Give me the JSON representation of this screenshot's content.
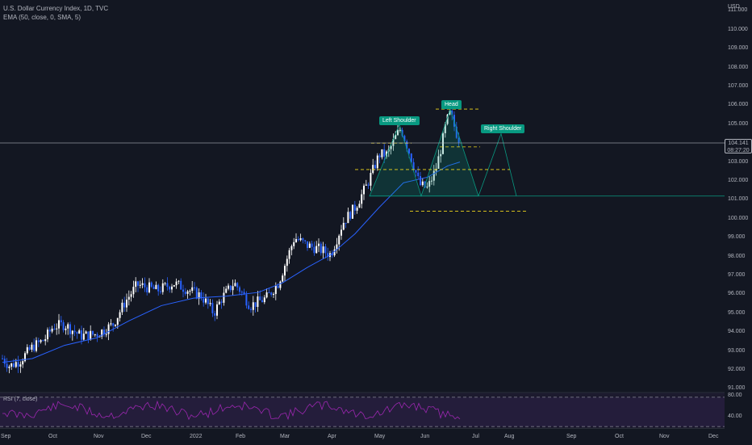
{
  "legend": {
    "symbol_line": "U.S. Dollar Currency Index, 1D, TVC",
    "indicator_line": "EMA (50, close, 0, SMA, 5)"
  },
  "currency": "USD",
  "price_ticks": [
    "111.000",
    "110.000",
    "109.000",
    "108.000",
    "107.000",
    "106.000",
    "105.000",
    "103.000",
    "102.000",
    "101.000",
    "100.000",
    "99.000",
    "98.000",
    "97.000",
    "96.000",
    "95.000",
    "94.000",
    "93.000",
    "92.000",
    "91.000"
  ],
  "current_price": {
    "value": "104.141",
    "countdown": "08:27:20"
  },
  "time_ticks": [
    "Sep",
    "Oct",
    "Nov",
    "Dec",
    "2022",
    "Feb",
    "Mar",
    "Apr",
    "May",
    "Jun",
    "Jul",
    "Aug",
    "Sep",
    "Oct",
    "Nov",
    "Dec"
  ],
  "rsi": {
    "label": "RSI (7, close)",
    "upper": "80.00",
    "lower": "40.00"
  },
  "pattern": {
    "left_shoulder": "Left Shoulder",
    "head": "Head",
    "right_shoulder": "Right Shoulder"
  },
  "colors": {
    "background": "#131722",
    "candle_up": "#ffffff",
    "candle_down": "#2962ff",
    "ema": "#2962ff",
    "pattern_fill": "#089981",
    "dashed_levels": "#f2d81c",
    "rsi_line": "#9c27b0",
    "price_line": "#b2b5be"
  },
  "chart_data": {
    "type": "candlestick",
    "title": "U.S. Dollar Currency Index, 1D, TVC",
    "x": [
      "2021-08",
      "2021-09",
      "2021-10",
      "2021-11",
      "2021-12",
      "2022-01",
      "2022-02",
      "2022-03",
      "2022-04",
      "2022-05",
      "2022-06"
    ],
    "close": [
      92.6,
      93.8,
      94.1,
      96.0,
      96.3,
      95.7,
      96.4,
      98.6,
      103.0,
      101.8,
      104.1
    ],
    "series": [
      {
        "name": "EMA (50, close, 0, SMA, 5)",
        "values": [
          92.4,
          93.2,
          93.9,
          95.1,
          95.9,
          95.9,
          96.0,
          97.3,
          100.6,
          102.2,
          102.9
        ]
      }
    ],
    "ylim": [
      91,
      111.5
    ],
    "rsi_levels": [
      40,
      80
    ],
    "legend_position": "top-left"
  }
}
